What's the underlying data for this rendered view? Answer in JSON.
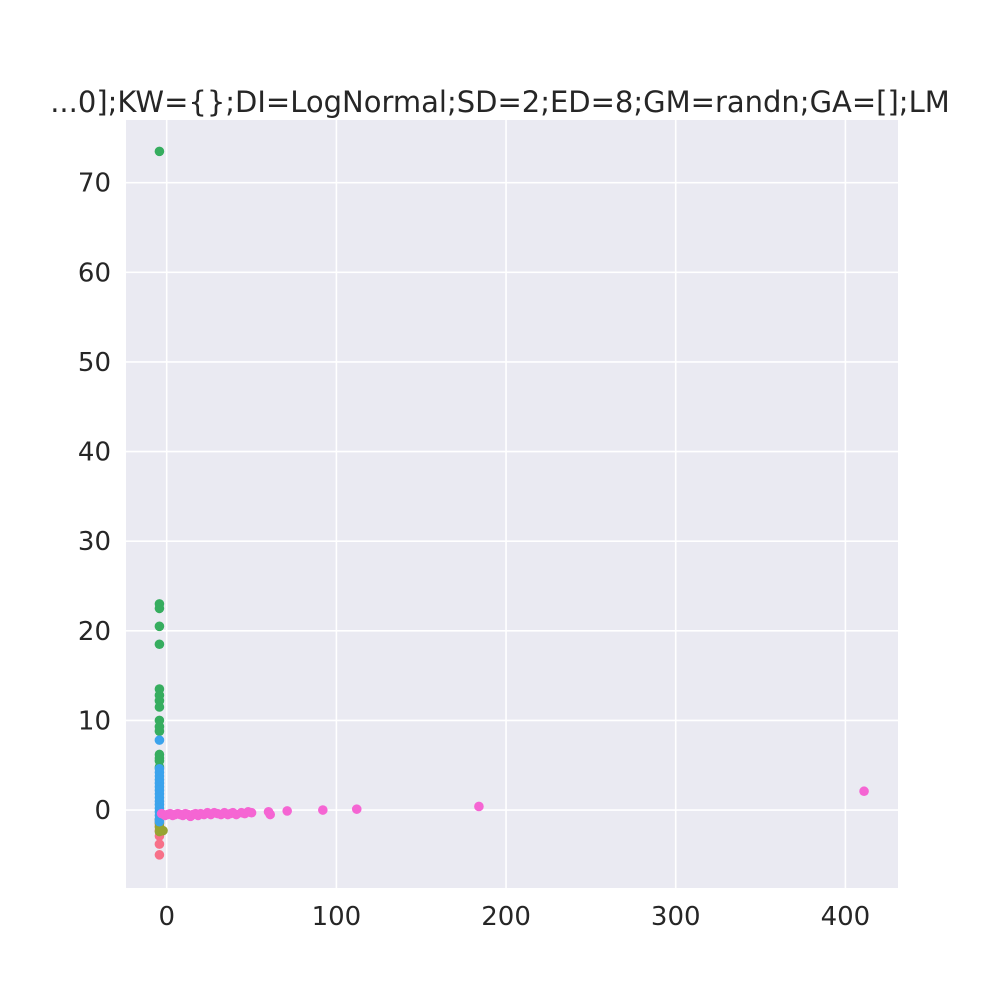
{
  "chart_data": {
    "type": "scatter",
    "title": "...0];KW={};DI=LogNormal;SD=2;ED=8;GM=randn;GA=[];LM",
    "xlabel": "",
    "ylabel": "",
    "xlim": [
      -24,
      431
    ],
    "ylim": [
      -8.7,
      77
    ],
    "xticks": [
      0,
      100,
      200,
      300,
      400
    ],
    "yticks": [
      0,
      10,
      20,
      30,
      40,
      50,
      60,
      70
    ],
    "grid": true,
    "legend": "none",
    "background": "#EAEAF2",
    "series": [
      {
        "color": "#F77189",
        "points": [
          [
            -4.3,
            -5.0
          ],
          [
            -4.3,
            -3.8
          ],
          [
            -4.3,
            -2.9
          ],
          [
            -4.3,
            -2.3
          ],
          [
            -4.3,
            -1.8
          ],
          [
            -4.3,
            -1.4
          ],
          [
            -4.3,
            -1.0
          ]
        ]
      },
      {
        "color": "#97A431",
        "points": [
          [
            -4.3,
            -2.4
          ],
          [
            -2.2,
            -2.3
          ],
          [
            -4.3,
            -1.9
          ],
          [
            -4.3,
            -1.5
          ],
          [
            -4.3,
            -1.1
          ]
        ]
      },
      {
        "color": "#36AD5F",
        "points": [
          [
            -4.3,
            73.5
          ],
          [
            -4.3,
            23.0
          ],
          [
            -4.3,
            22.5
          ],
          [
            -4.3,
            20.5
          ],
          [
            -4.3,
            18.5
          ],
          [
            -4.3,
            13.5
          ],
          [
            -4.3,
            12.8
          ],
          [
            -4.3,
            12.2
          ],
          [
            -4.3,
            11.5
          ],
          [
            -4.3,
            10.0
          ],
          [
            -4.3,
            9.3
          ],
          [
            -4.3,
            8.8
          ],
          [
            -4.3,
            6.2
          ],
          [
            -4.3,
            5.8
          ],
          [
            -4.3,
            5.5
          ],
          [
            -4.3,
            4.8
          ]
        ]
      },
      {
        "color": "#3BA3EC",
        "points": [
          [
            -4.3,
            7.8
          ],
          [
            -4.3,
            4.6
          ],
          [
            -4.3,
            4.2
          ],
          [
            -4.3,
            3.8
          ],
          [
            -4.3,
            3.4
          ],
          [
            -4.3,
            3.0
          ],
          [
            -4.3,
            2.6
          ],
          [
            -4.3,
            2.2
          ],
          [
            -4.3,
            1.8
          ],
          [
            -4.3,
            1.4
          ],
          [
            -4.3,
            1.0
          ],
          [
            -4.3,
            0.6
          ],
          [
            -4.3,
            0.2
          ],
          [
            -4.3,
            -0.2
          ],
          [
            -4.3,
            -0.6
          ],
          [
            -4.3,
            -1.0
          ],
          [
            -4.3,
            -1.3
          ]
        ]
      },
      {
        "color": "#F565D3",
        "points": [
          [
            -3.0,
            -0.4
          ],
          [
            -1.0,
            -0.6
          ],
          [
            0.5,
            -0.5
          ],
          [
            2.0,
            -0.4
          ],
          [
            3.5,
            -0.6
          ],
          [
            5.0,
            -0.5
          ],
          [
            6.5,
            -0.4
          ],
          [
            8.0,
            -0.5
          ],
          [
            9.5,
            -0.6
          ],
          [
            11.0,
            -0.4
          ],
          [
            12.5,
            -0.5
          ],
          [
            14.0,
            -0.7
          ],
          [
            15.5,
            -0.5
          ],
          [
            17.0,
            -0.4
          ],
          [
            18.5,
            -0.6
          ],
          [
            20.0,
            -0.4
          ],
          [
            22.0,
            -0.5
          ],
          [
            24.0,
            -0.3
          ],
          [
            26.0,
            -0.5
          ],
          [
            28.0,
            -0.3
          ],
          [
            30.0,
            -0.4
          ],
          [
            32.0,
            -0.5
          ],
          [
            34.0,
            -0.3
          ],
          [
            36.0,
            -0.5
          ],
          [
            37.5,
            -0.4
          ],
          [
            39.0,
            -0.3
          ],
          [
            41.0,
            -0.5
          ],
          [
            44.0,
            -0.3
          ],
          [
            46.0,
            -0.4
          ],
          [
            48.0,
            -0.2
          ],
          [
            50.0,
            -0.3
          ],
          [
            60.0,
            -0.2
          ],
          [
            61.0,
            -0.5
          ],
          [
            71.0,
            -0.1
          ],
          [
            92.0,
            -0.0
          ],
          [
            112.0,
            0.1
          ],
          [
            184.0,
            0.4
          ],
          [
            411.0,
            2.1
          ]
        ]
      }
    ]
  }
}
